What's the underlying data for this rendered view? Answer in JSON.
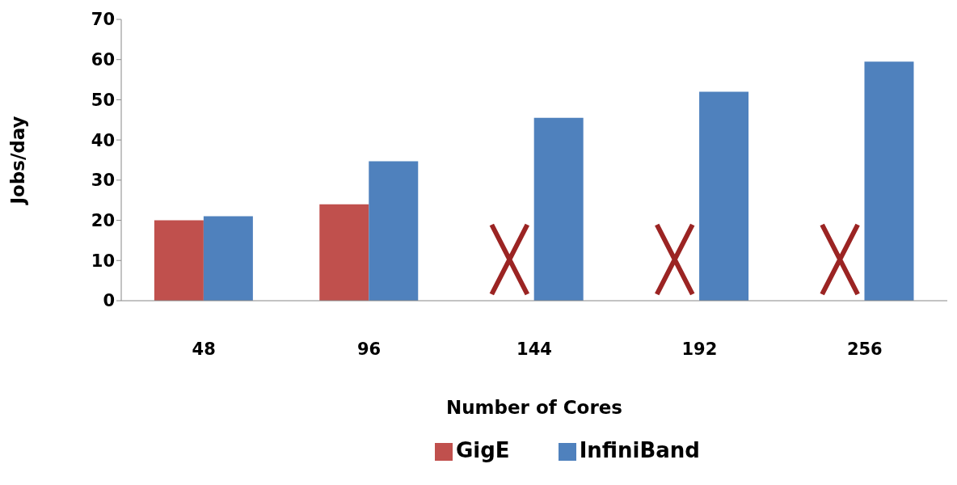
{
  "chart_data": {
    "type": "bar",
    "xlabel": "Number of Cores",
    "ylabel": "Jobs/day",
    "categories": [
      "48",
      "96",
      "144",
      "192",
      "256"
    ],
    "series": [
      {
        "name": "GigE",
        "color": "#c0504d",
        "values": [
          20,
          24,
          null,
          null,
          null
        ]
      },
      {
        "name": "InfiniBand",
        "color": "#4f81bd",
        "values": [
          21,
          34.7,
          45.5,
          52,
          59.5
        ]
      }
    ],
    "ylim": [
      0,
      70
    ],
    "yticks": [
      0,
      10,
      20,
      30,
      40,
      50,
      60,
      70
    ],
    "grid": false,
    "legend": "bottom"
  }
}
